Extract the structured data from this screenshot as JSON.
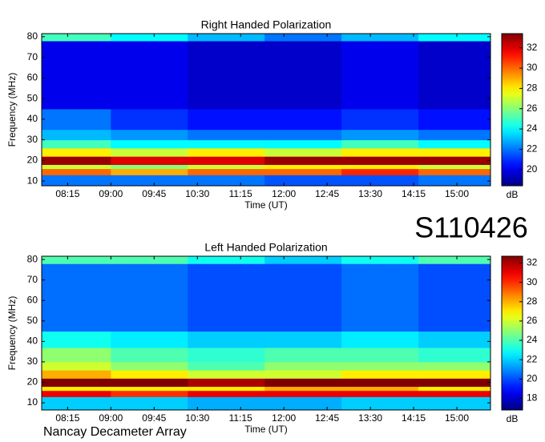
{
  "label": "S110426",
  "footer": "Nancay Decameter Array",
  "chart_data": [
    {
      "type": "heatmap",
      "title": "Right Handed Polarization",
      "xlabel": "Time (UT)",
      "ylabel": "Frequency (MHz)",
      "colormap": "jet",
      "xlim": [
        468,
        935
      ],
      "ylim": [
        7.7,
        81.5
      ],
      "xticks": [
        {
          "value": 495,
          "label": "08:15"
        },
        {
          "value": 540,
          "label": "09:00"
        },
        {
          "value": 585,
          "label": "09:45"
        },
        {
          "value": 630,
          "label": "10:30"
        },
        {
          "value": 675,
          "label": "11:15"
        },
        {
          "value": 720,
          "label": "12:00"
        },
        {
          "value": 765,
          "label": "12:45"
        },
        {
          "value": 810,
          "label": "13:30"
        },
        {
          "value": 855,
          "label": "14:15"
        },
        {
          "value": 900,
          "label": "15:00"
        }
      ],
      "yticks": [
        10,
        20,
        30,
        40,
        50,
        60,
        70,
        80
      ],
      "x_bins": [
        468,
        540,
        620,
        700,
        780,
        860,
        935
      ],
      "y_bins": [
        7.7,
        13,
        16,
        18,
        22,
        26,
        30,
        35,
        45,
        78,
        81.5
      ],
      "z": [
        [
          22,
          22,
          22,
          21.5,
          21.5,
          22
        ],
        [
          30,
          29,
          30,
          30,
          31,
          30
        ],
        [
          27,
          26,
          27,
          28,
          28,
          27
        ],
        [
          33,
          32,
          32,
          33,
          33,
          33
        ],
        [
          28,
          27,
          28,
          27,
          28,
          28
        ],
        [
          25,
          24,
          24,
          24,
          25,
          24
        ],
        [
          23,
          22.5,
          22,
          22,
          22.5,
          22
        ],
        [
          22,
          21,
          20.5,
          20.5,
          21,
          20.5
        ],
        [
          20,
          20,
          19.5,
          19.5,
          20,
          19.5
        ],
        [
          25,
          24,
          23,
          22,
          23,
          24
        ]
      ],
      "colorbar": {
        "label": "dB",
        "lim": [
          18.4,
          33.4
        ],
        "ticks": [
          20,
          22,
          24,
          26,
          28,
          30,
          32
        ]
      }
    },
    {
      "type": "heatmap",
      "title": "Left Handed Polarization",
      "xlabel": "Time (UT)",
      "ylabel": "Frequency (MHz)",
      "colormap": "jet",
      "xlim": [
        468,
        935
      ],
      "ylim": [
        6.5,
        81.6
      ],
      "xticks": [
        {
          "value": 495,
          "label": "08:15"
        },
        {
          "value": 540,
          "label": "09:00"
        },
        {
          "value": 585,
          "label": "09:45"
        },
        {
          "value": 630,
          "label": "10:30"
        },
        {
          "value": 675,
          "label": "11:15"
        },
        {
          "value": 720,
          "label": "12:00"
        },
        {
          "value": 765,
          "label": "12:45"
        },
        {
          "value": 810,
          "label": "13:30"
        },
        {
          "value": 855,
          "label": "14:15"
        },
        {
          "value": 900,
          "label": "15:00"
        }
      ],
      "yticks": [
        10,
        20,
        30,
        40,
        50,
        60,
        70,
        80
      ],
      "x_bins": [
        468,
        540,
        620,
        700,
        780,
        860,
        935
      ],
      "y_bins": [
        6.5,
        13,
        16,
        18,
        22,
        26,
        30,
        37,
        45,
        78,
        81.6
      ],
      "z": [
        [
          22,
          22,
          21.5,
          21.5,
          22,
          22
        ],
        [
          31,
          30,
          31,
          31,
          31,
          31
        ],
        [
          27,
          27,
          27,
          28,
          28,
          27
        ],
        [
          33,
          33,
          32,
          33,
          33,
          33
        ],
        [
          28,
          27,
          26,
          26,
          27,
          27
        ],
        [
          26,
          25,
          24,
          25,
          25,
          25
        ],
        [
          25,
          24,
          23.5,
          24,
          24,
          23.5
        ],
        [
          23,
          22.5,
          22,
          22,
          22.5,
          22
        ],
        [
          20.5,
          20.5,
          20,
          20,
          20.5,
          20
        ],
        [
          24,
          24,
          23,
          22,
          23,
          24
        ]
      ],
      "colorbar": {
        "label": "dB",
        "lim": [
          16.8,
          32.7
        ],
        "ticks": [
          18,
          20,
          22,
          24,
          26,
          28,
          30,
          32
        ]
      }
    }
  ]
}
